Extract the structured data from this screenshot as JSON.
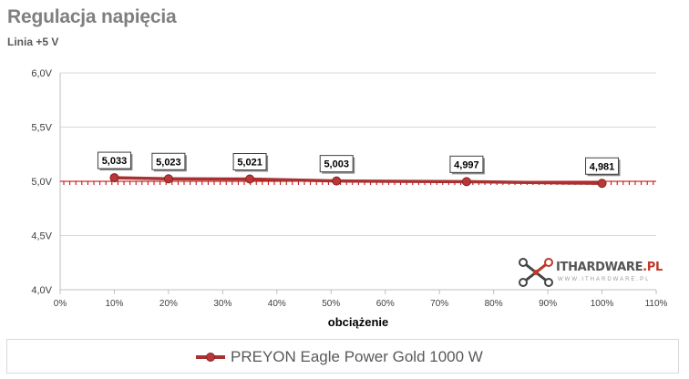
{
  "header": {
    "title": "Regulacja napięcia",
    "subtitle": "Linia +5 V"
  },
  "logo": {
    "text_main": "ITHARDWARE",
    "text_accent": ".PL",
    "tagline": "WWW.ITHARDWARE.PL",
    "icon": "network-nodes-icon"
  },
  "chart_data": {
    "type": "line",
    "title": "Regulacja napięcia",
    "subtitle": "Linia +5 V",
    "xlabel": "obciążenie",
    "ylabel": "",
    "xlim": [
      0,
      110
    ],
    "ylim": [
      4.0,
      6.0
    ],
    "x_ticks": [
      "0%",
      "10%",
      "20%",
      "30%",
      "40%",
      "50%",
      "60%",
      "70%",
      "80%",
      "90%",
      "100%",
      "110%"
    ],
    "y_ticks": [
      "4,0V",
      "4,5V",
      "5,0V",
      "5,5V",
      "6,0V"
    ],
    "reference_line": 5.0,
    "grid": "horizontal",
    "legend_position": "bottom",
    "series": [
      {
        "name": "PREYON Eagle Power Gold 1000 W",
        "color": "#a83232",
        "x": [
          10,
          20,
          35,
          51,
          75,
          100
        ],
        "values": [
          5.033,
          5.023,
          5.021,
          5.003,
          4.997,
          4.981
        ],
        "labels": [
          "5,033",
          "5,023",
          "5,021",
          "5,003",
          "4,997",
          "4,981"
        ]
      }
    ]
  }
}
